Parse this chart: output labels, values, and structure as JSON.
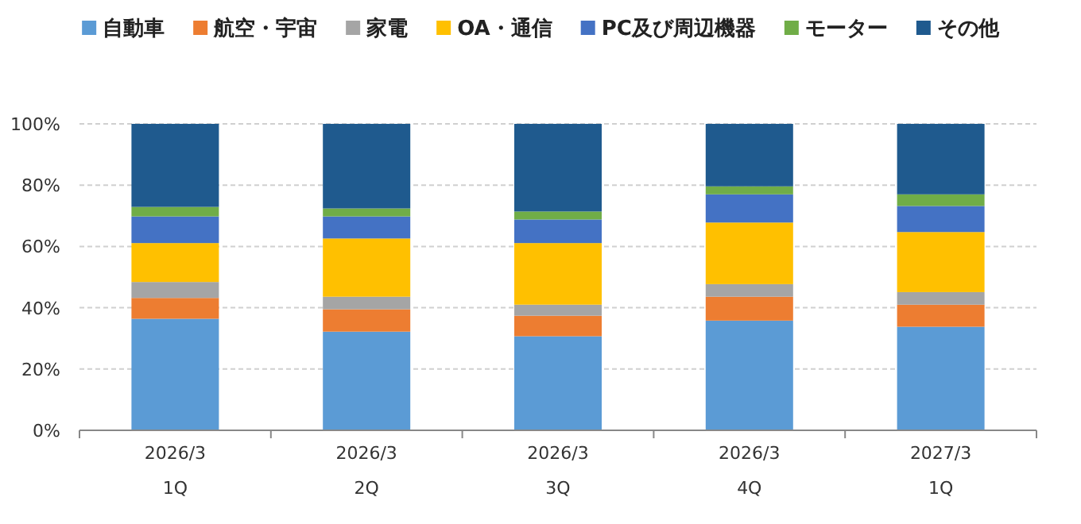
{
  "chart_data": {
    "type": "bar",
    "stacked": true,
    "categories": [
      "2026/3\n1Q",
      "2026/3\n2Q",
      "2026/3\n3Q",
      "2026/3\n4Q",
      "2027/3\n1Q"
    ],
    "series": [
      {
        "name": "自動車",
        "color": "#5b9bd5",
        "values": [
          36.4,
          32.2,
          30.7,
          35.8,
          33.8
        ]
      },
      {
        "name": "航空・宇宙",
        "color": "#ed7d31",
        "values": [
          6.8,
          7.3,
          6.7,
          7.8,
          7.2
        ]
      },
      {
        "name": "家電",
        "color": "#a5a5a5",
        "values": [
          5.2,
          4.1,
          3.6,
          4.1,
          4.1
        ]
      },
      {
        "name": "OA・通信",
        "color": "#ffc000",
        "values": [
          12.7,
          19.0,
          20.1,
          20.1,
          19.6
        ]
      },
      {
        "name": "PC及び周辺機器",
        "color": "#4472c4",
        "values": [
          8.7,
          7.2,
          7.7,
          9.2,
          8.5
        ]
      },
      {
        "name": "モーター",
        "color": "#70ad47",
        "values": [
          3.1,
          2.6,
          2.6,
          2.6,
          3.8
        ]
      },
      {
        "name": "その他",
        "color": "#1f5a8e",
        "values": [
          27.1,
          27.6,
          28.6,
          20.4,
          23.0
        ]
      }
    ],
    "ylim": [
      0,
      100
    ],
    "yticks": [
      {
        "value": 0,
        "label": "0%"
      },
      {
        "value": 20,
        "label": "20%"
      },
      {
        "value": 40,
        "label": "40%"
      },
      {
        "value": 60,
        "label": "60%"
      },
      {
        "value": 80,
        "label": "80%"
      },
      {
        "value": 100,
        "label": "100%"
      }
    ],
    "grid": "y",
    "legend": "top"
  }
}
